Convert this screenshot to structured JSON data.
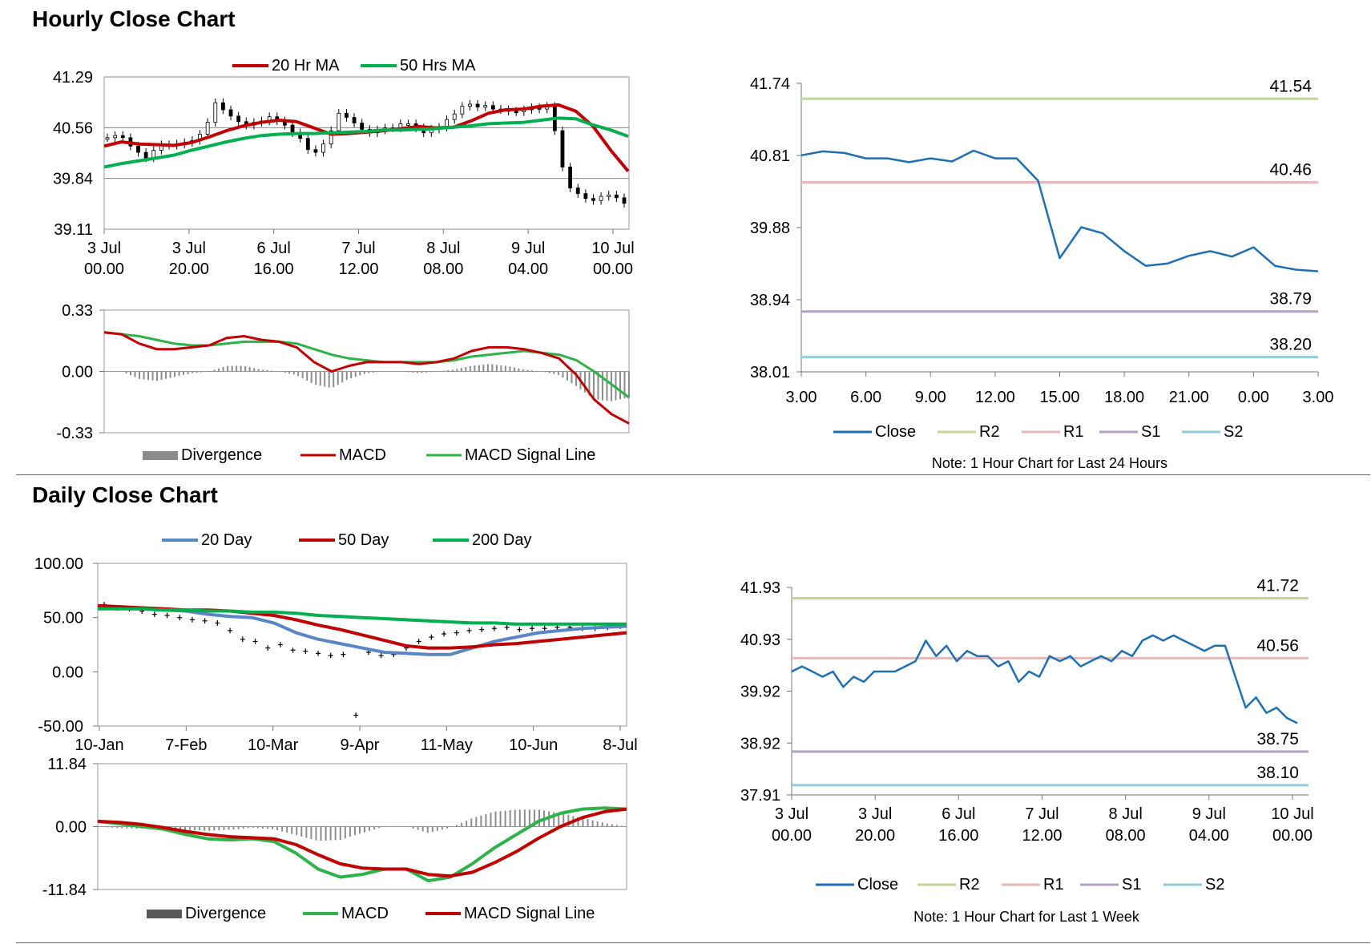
{
  "sections": {
    "hourly_title": "Hourly Close Chart",
    "daily_title": "Daily Close Chart"
  },
  "colors": {
    "close": "#1f6fb2",
    "r2": "#c3d69b",
    "r1": "#e6b9b8",
    "s1": "#b3a2c7",
    "s2": "#93cddd",
    "ma_red": "#c00000",
    "ma_green": "#00b050",
    "ma_blue": "#5b86c5",
    "div_gray": "#8c8c8c",
    "macd_red": "#c00000",
    "macd_green": "#2db34a"
  },
  "chart_data": [
    {
      "id": "hourly-ma",
      "type": "line",
      "ylim": [
        39.11,
        41.29
      ],
      "yticks": [
        "41.29",
        "40.56",
        "39.84",
        "39.11"
      ],
      "xticks": [
        [
          "3 Jul",
          "00.00"
        ],
        [
          "3 Jul",
          "20.00"
        ],
        [
          "6 Jul",
          "16.00"
        ],
        [
          "7 Jul",
          "12.00"
        ],
        [
          "8 Jul",
          "08.00"
        ],
        [
          "9 Jul",
          "04.00"
        ],
        [
          "10 Jul",
          "00.00"
        ]
      ],
      "legend": [
        "20 Hr MA",
        "50 Hrs MA"
      ],
      "series": [
        {
          "name": "20 Hr MA",
          "values": [
            40.3,
            40.36,
            40.33,
            40.32,
            40.31,
            40.35,
            40.43,
            40.52,
            40.59,
            40.64,
            40.67,
            40.65,
            40.56,
            40.47,
            40.48,
            40.5,
            40.52,
            40.55,
            40.58,
            40.56,
            40.57,
            40.66,
            40.77,
            40.82,
            40.83,
            40.87,
            40.89,
            40.8,
            40.58,
            40.24,
            39.94
          ]
        },
        {
          "name": "50 Hrs MA",
          "values": [
            40.0,
            40.05,
            40.09,
            40.13,
            40.17,
            40.24,
            40.3,
            40.36,
            40.41,
            40.45,
            40.47,
            40.48,
            40.48,
            40.49,
            40.5,
            40.51,
            40.53,
            40.53,
            40.54,
            40.55,
            40.57,
            40.59,
            40.62,
            40.63,
            40.64,
            40.67,
            40.7,
            40.69,
            40.6,
            40.53,
            40.44
          ]
        }
      ],
      "close": [
        40.42,
        40.45,
        40.42,
        40.3,
        40.21,
        40.13,
        40.24,
        40.32,
        40.31,
        40.33,
        40.35,
        40.38,
        40.47,
        40.64,
        40.92,
        40.82,
        40.73,
        40.65,
        40.6,
        40.64,
        40.66,
        40.72,
        40.66,
        40.6,
        40.49,
        40.41,
        40.25,
        40.21,
        40.33,
        40.52,
        40.77,
        40.71,
        40.63,
        40.54,
        40.49,
        40.53,
        40.56,
        40.56,
        40.62,
        40.62,
        40.56,
        40.49,
        40.54,
        40.57,
        40.68,
        40.76,
        40.87,
        40.9,
        40.86,
        40.88,
        40.83,
        40.82,
        40.8,
        40.79,
        40.82,
        40.85,
        40.83,
        40.87,
        40.52,
        40.0,
        39.7,
        39.62,
        39.55,
        39.52,
        39.58,
        39.6,
        39.56,
        39.48
      ]
    },
    {
      "id": "hourly-macd",
      "type": "line",
      "ylim": [
        -0.33,
        0.33
      ],
      "yticks": [
        "0.33",
        "0.00",
        "-0.33"
      ],
      "legend": [
        "Divergence",
        "MACD",
        "MACD Signal Line"
      ],
      "series": [
        {
          "name": "MACD",
          "values": [
            0.21,
            0.2,
            0.15,
            0.12,
            0.12,
            0.13,
            0.14,
            0.18,
            0.19,
            0.17,
            0.16,
            0.13,
            0.05,
            0.0,
            0.03,
            0.05,
            0.05,
            0.05,
            0.04,
            0.05,
            0.07,
            0.11,
            0.13,
            0.13,
            0.12,
            0.1,
            0.07,
            -0.02,
            -0.15,
            -0.23,
            -0.28
          ]
        },
        {
          "name": "MACD Signal Line",
          "values": [
            0.21,
            0.2,
            0.19,
            0.17,
            0.15,
            0.14,
            0.14,
            0.15,
            0.16,
            0.16,
            0.16,
            0.15,
            0.12,
            0.09,
            0.07,
            0.06,
            0.05,
            0.05,
            0.05,
            0.05,
            0.06,
            0.08,
            0.09,
            0.1,
            0.11,
            0.1,
            0.09,
            0.06,
            0.0,
            -0.07,
            -0.14
          ]
        },
        {
          "name": "Divergence",
          "values": [
            0.0,
            0.0,
            -0.04,
            -0.05,
            -0.03,
            -0.01,
            0.0,
            0.03,
            0.03,
            0.01,
            0.0,
            -0.02,
            -0.07,
            -0.09,
            -0.04,
            -0.01,
            0.0,
            0.0,
            -0.01,
            0.0,
            0.01,
            0.03,
            0.04,
            0.03,
            0.01,
            0.0,
            -0.02,
            -0.08,
            -0.15,
            -0.16,
            -0.14
          ]
        }
      ]
    },
    {
      "id": "hourly-close",
      "type": "line",
      "ylim": [
        38.01,
        41.74
      ],
      "yticks": [
        "41.74",
        "40.81",
        "39.88",
        "38.94",
        "38.01"
      ],
      "xticks": [
        "3.00",
        "6.00",
        "9.00",
        "12.00",
        "15.00",
        "18.00",
        "21.00",
        "0.00",
        "3.00"
      ],
      "legend": [
        "Close",
        "R2",
        "R1",
        "S1",
        "S2"
      ],
      "levels": {
        "R2": 41.54,
        "R1": 40.46,
        "S1": 38.79,
        "S2": 38.2
      },
      "series": [
        {
          "name": "Close",
          "values": [
            40.81,
            40.86,
            40.84,
            40.77,
            40.77,
            40.72,
            40.77,
            40.73,
            40.87,
            40.77,
            40.77,
            40.48,
            39.48,
            39.88,
            39.8,
            39.57,
            39.38,
            39.41,
            39.51,
            39.57,
            39.5,
            39.62,
            39.38,
            39.33,
            39.31
          ]
        }
      ],
      "note": "Note: 1 Hour Chart for Last 24 Hours"
    },
    {
      "id": "daily-ma",
      "type": "line",
      "ylim": [
        -50,
        100
      ],
      "yticks": [
        "100.00",
        "50.00",
        "0.00",
        "-50.00"
      ],
      "xticks": [
        "10-Jan",
        "7-Feb",
        "10-Mar",
        "9-Apr",
        "11-May",
        "10-Jun",
        "8-Jul"
      ],
      "legend": [
        "20 Day",
        "50 Day",
        "200 Day"
      ],
      "series": [
        {
          "name": "20 Day",
          "values": [
            60,
            59,
            58,
            57,
            56,
            53,
            51,
            50,
            45,
            36,
            30,
            26,
            22,
            18,
            17,
            16,
            16,
            22,
            28,
            32,
            36,
            38,
            40,
            41,
            42
          ]
        },
        {
          "name": "50 Day",
          "values": [
            61,
            60,
            59,
            58,
            57,
            57,
            56,
            54,
            52,
            48,
            43,
            39,
            34,
            29,
            24,
            22,
            22,
            23,
            25,
            26,
            28,
            30,
            32,
            34,
            36
          ]
        },
        {
          "name": "200 Day",
          "values": [
            58,
            58,
            58,
            57,
            57,
            56,
            56,
            55,
            55,
            54,
            52,
            51,
            50,
            49,
            48,
            47,
            46,
            45,
            45,
            44,
            44,
            44,
            44,
            44,
            44
          ]
        }
      ],
      "close": [
        62,
        59,
        58,
        56,
        53,
        52,
        50,
        48,
        47,
        45,
        38,
        30,
        28,
        22,
        25,
        20,
        19,
        17,
        15,
        16,
        -40,
        18,
        15,
        16,
        22,
        28,
        32,
        35,
        36,
        38,
        39,
        40,
        41,
        39,
        40,
        40,
        41,
        41,
        40,
        40,
        41,
        42
      ]
    },
    {
      "id": "daily-macd",
      "type": "line",
      "ylim": [
        -11.84,
        11.84
      ],
      "yticks": [
        "11.84",
        "0.00",
        "-11.84"
      ],
      "legend": [
        "Divergence",
        "MACD",
        "MACD Signal Line"
      ],
      "series": [
        {
          "name": "MACD",
          "values": [
            1.0,
            0.5,
            0.0,
            -0.5,
            -1.5,
            -2.3,
            -2.5,
            -2.3,
            -2.8,
            -5.0,
            -8.0,
            -9.5,
            -9.0,
            -8.0,
            -8.0,
            -10.2,
            -9.5,
            -7.0,
            -4.0,
            -1.5,
            1.0,
            2.5,
            3.3,
            3.5,
            3.3
          ]
        },
        {
          "name": "MACD Signal Line",
          "values": [
            1.0,
            0.8,
            0.4,
            -0.2,
            -0.9,
            -1.5,
            -1.9,
            -2.1,
            -2.3,
            -3.4,
            -5.3,
            -7.0,
            -7.8,
            -8.0,
            -8.0,
            -9.0,
            -9.3,
            -8.6,
            -6.8,
            -4.7,
            -2.2,
            0.0,
            1.7,
            2.8,
            3.3
          ]
        },
        {
          "name": "Divergence",
          "values": [
            0.0,
            -0.3,
            -0.4,
            -0.3,
            -0.6,
            -0.8,
            -0.6,
            -0.2,
            -0.5,
            -1.6,
            -2.7,
            -2.5,
            -1.2,
            0.0,
            0.0,
            -1.2,
            -0.2,
            1.6,
            2.8,
            3.2,
            3.2,
            2.5,
            1.6,
            0.7,
            0.0
          ]
        }
      ]
    },
    {
      "id": "daily-close",
      "type": "line",
      "ylim": [
        37.91,
        41.93
      ],
      "yticks": [
        "41.93",
        "40.93",
        "39.92",
        "38.92",
        "37.91"
      ],
      "xticks": [
        [
          "3 Jul",
          "00.00"
        ],
        [
          "3 Jul",
          "20.00"
        ],
        [
          "6 Jul",
          "16.00"
        ],
        [
          "7 Jul",
          "12.00"
        ],
        [
          "8 Jul",
          "08.00"
        ],
        [
          "9 Jul",
          "04.00"
        ],
        [
          "10 Jul",
          "00.00"
        ]
      ],
      "legend": [
        "Close",
        "R2",
        "R1",
        "S1",
        "S2"
      ],
      "levels": {
        "R2": 41.72,
        "R1": 40.56,
        "S1": 38.75,
        "S2": 38.1
      },
      "series": [
        {
          "name": "Close",
          "values": [
            40.3,
            40.4,
            40.3,
            40.2,
            40.3,
            40.0,
            40.2,
            40.1,
            40.3,
            40.3,
            40.3,
            40.4,
            40.5,
            40.9,
            40.6,
            40.8,
            40.5,
            40.7,
            40.6,
            40.6,
            40.4,
            40.5,
            40.1,
            40.3,
            40.2,
            40.6,
            40.5,
            40.6,
            40.4,
            40.5,
            40.6,
            40.5,
            40.7,
            40.6,
            40.9,
            41.0,
            40.9,
            41.0,
            40.9,
            40.8,
            40.7,
            40.8,
            40.8,
            40.2,
            39.6,
            39.8,
            39.5,
            39.6,
            39.4,
            39.3
          ]
        }
      ],
      "note": "Note: 1 Hour Chart for Last 1 Week"
    }
  ]
}
